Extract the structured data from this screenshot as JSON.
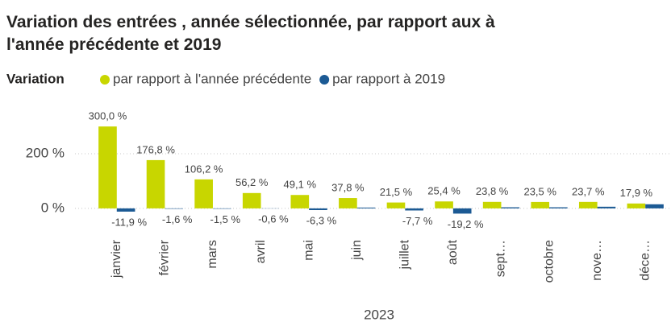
{
  "chart_data": {
    "type": "bar",
    "title": "Variation des entrées , année sélectionnée, par rapport aux à l'année précédente et 2019",
    "legend_title": "Variation",
    "x_label": "2023",
    "categories": [
      "janvier",
      "février",
      "mars",
      "avril",
      "mai",
      "juin",
      "juillet",
      "août",
      "sept…",
      "octobre",
      "nove…",
      "déce…"
    ],
    "series": [
      {
        "name": "par rapport à l'année précédente",
        "color": "#c8d600",
        "values": [
          300.0,
          176.8,
          106.2,
          56.2,
          49.1,
          37.8,
          21.5,
          25.4,
          23.8,
          23.5,
          23.7,
          17.9
        ],
        "value_labels": [
          "300,0 %",
          "176,8 %",
          "106,2 %",
          "56,2 %",
          "49,1 %",
          "37,8 %",
          "21,5 %",
          "25,4 %",
          "23,8 %",
          "23,5 %",
          "23,7 %",
          "17,9 %"
        ]
      },
      {
        "name": "par rapport à 2019",
        "color": "#1c5a94",
        "values": [
          -11.9,
          -1.6,
          -1.5,
          -0.6,
          -6.3,
          3,
          -7.7,
          -19.2,
          4,
          4,
          6,
          15
        ],
        "value_labels": [
          "-11,9 %",
          "-1,6 %",
          "-1,5 %",
          "-0,6 %",
          "-6,3 %",
          null,
          "-7,7 %",
          "-19,2 %",
          null,
          null,
          null,
          null
        ]
      }
    ],
    "ylim": [
      -80,
      380
    ],
    "yticks": [
      {
        "value": 0,
        "label": "0 %"
      },
      {
        "value": 200,
        "label": "200 %"
      }
    ],
    "grid": true
  }
}
